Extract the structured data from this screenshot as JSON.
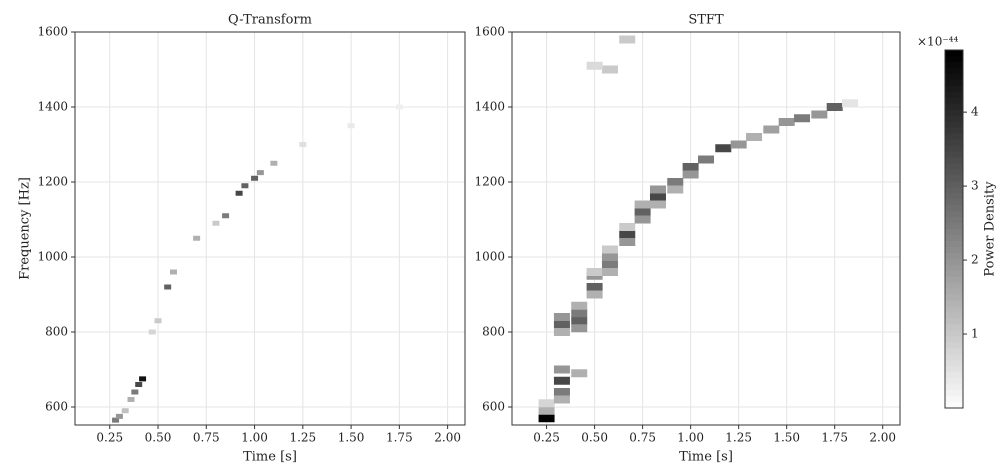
{
  "chart_data": [
    {
      "type": "heatmap",
      "title": "Q-Transform",
      "xlabel": "Time [s]",
      "ylabel": "Frequency [Hz]",
      "xlim": [
        0.07,
        2.09
      ],
      "ylim": [
        552,
        1600
      ],
      "xticks": [
        {
          "value": 0.25,
          "label": "0.25"
        },
        {
          "value": 0.5,
          "label": "0.50"
        },
        {
          "value": 0.75,
          "label": "0.75"
        },
        {
          "value": 1.0,
          "label": "1.00"
        },
        {
          "value": 1.25,
          "label": "1.25"
        },
        {
          "value": 1.5,
          "label": "1.50"
        },
        {
          "value": 1.75,
          "label": "1.75"
        },
        {
          "value": 2.0,
          "label": "2.00"
        }
      ],
      "yticks": [
        600,
        800,
        1000,
        1200,
        1400,
        1600
      ],
      "grid": true,
      "cmap": [
        "#ffffff",
        "#000000"
      ],
      "vlim": [
        0,
        4.84
      ],
      "x": [
        0.28,
        0.3,
        0.33,
        0.36,
        0.38,
        0.4,
        0.42,
        0.47,
        0.5,
        0.55,
        0.58,
        0.7,
        0.8,
        0.85,
        0.92,
        0.95,
        1.0,
        1.03,
        1.1,
        1.25,
        1.5,
        1.75
      ],
      "y": [
        565,
        575,
        590,
        620,
        640,
        660,
        675,
        800,
        830,
        920,
        960,
        1050,
        1090,
        1110,
        1170,
        1190,
        1210,
        1225,
        1250,
        1300,
        1350,
        1400
      ],
      "values": [
        2.5,
        2,
        1.2,
        1.5,
        2.5,
        3.5,
        4.5,
        0.8,
        1,
        3,
        1.5,
        1.5,
        1,
        2.5,
        3.5,
        3,
        3,
        2,
        1.5,
        0.6,
        0.4,
        0.3
      ]
    },
    {
      "type": "heatmap",
      "title": "STFT",
      "xlabel": "Time [s]",
      "xlim": [
        0.07,
        2.09
      ],
      "ylim": [
        552,
        1600
      ],
      "xticks": [
        {
          "value": 0.25,
          "label": "0.25"
        },
        {
          "value": 0.5,
          "label": "0.50"
        },
        {
          "value": 0.75,
          "label": "0.75"
        },
        {
          "value": 1.0,
          "label": "1.00"
        },
        {
          "value": 1.25,
          "label": "1.25"
        },
        {
          "value": 1.5,
          "label": "1.50"
        },
        {
          "value": 1.75,
          "label": "1.75"
        },
        {
          "value": 2.0,
          "label": "2.00"
        }
      ],
      "yticks": [
        600,
        800,
        1000,
        1200,
        1400,
        1600
      ],
      "grid": true,
      "cmap": [
        "#ffffff",
        "#000000"
      ],
      "vlim": [
        0,
        4.84
      ],
      "x": [
        0.25,
        0.25,
        0.25,
        0.33,
        0.33,
        0.33,
        0.33,
        0.33,
        0.33,
        0.33,
        0.42,
        0.42,
        0.42,
        0.42,
        0.42,
        0.5,
        0.5,
        0.5,
        0.5,
        0.58,
        0.58,
        0.58,
        0.58,
        0.67,
        0.67,
        0.67,
        0.75,
        0.75,
        0.75,
        0.83,
        0.83,
        0.83,
        0.92,
        0.92,
        1.0,
        1.0,
        1.08,
        1.17,
        1.25,
        1.33,
        1.42,
        1.5,
        1.58,
        1.67,
        1.75,
        1.83,
        0.67,
        0.58,
        0.5
      ],
      "y": [
        570,
        590,
        610,
        670,
        640,
        700,
        620,
        820,
        840,
        800,
        830,
        850,
        810,
        870,
        690,
        920,
        950,
        900,
        960,
        980,
        1000,
        960,
        1020,
        1060,
        1040,
        1080,
        1120,
        1100,
        1140,
        1160,
        1180,
        1140,
        1200,
        1180,
        1240,
        1220,
        1260,
        1290,
        1300,
        1320,
        1340,
        1360,
        1370,
        1380,
        1400,
        1410,
        1580,
        1500,
        1510
      ],
      "values": [
        4.8,
        1.5,
        0.8,
        3.5,
        2.5,
        2,
        1.5,
        3,
        2,
        1.5,
        3,
        2.5,
        2,
        1.5,
        1.5,
        3,
        2,
        1.5,
        1,
        2.5,
        2,
        1.5,
        1,
        3.5,
        2,
        1,
        3,
        2,
        1.5,
        3.5,
        2,
        1.5,
        2.5,
        1.5,
        3,
        2,
        2.5,
        3.5,
        2,
        1.5,
        1.8,
        2,
        2.5,
        2,
        3,
        0.5,
        1,
        1,
        0.7
      ],
      "colorbar": {
        "label": "Power Density",
        "offset_text": "×10⁻⁴⁴",
        "lim": [
          0,
          4.84
        ],
        "ticks": [
          1,
          2,
          3,
          4
        ]
      }
    }
  ]
}
